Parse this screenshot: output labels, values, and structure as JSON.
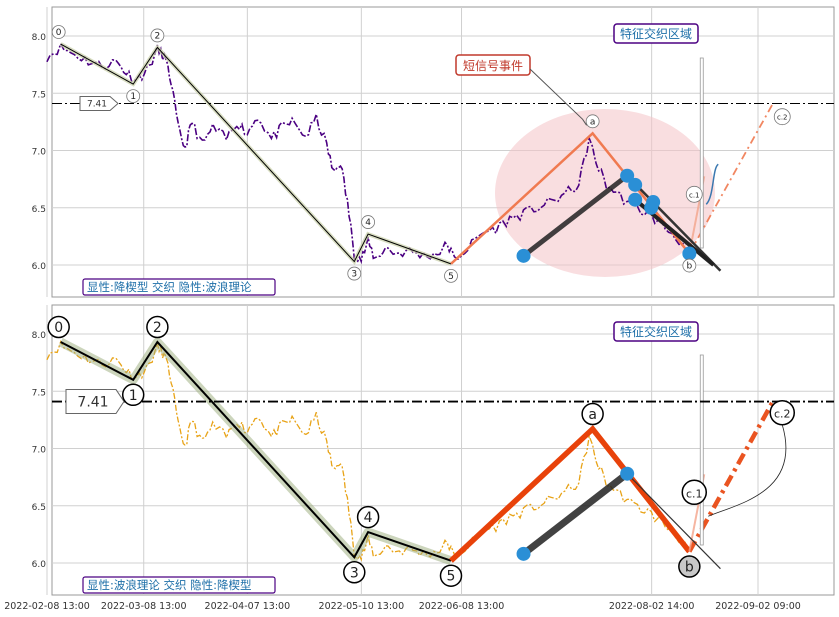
{
  "chart_data": [
    {
      "type": "line",
      "ylim": [
        5.75,
        8.25
      ],
      "yticks": [
        6.0,
        6.5,
        7.0,
        7.5,
        8.0
      ],
      "hline": {
        "value": 7.41,
        "label": "7.41"
      },
      "caption": "显性:降楔型 交织 隐性:波浪理论",
      "annotation_region": "特征交织区域",
      "annotation_event": "短信号事件",
      "price_color": "#4b0082",
      "wave_color": "#000000",
      "wave_points": [
        {
          "x": "2022-02-12",
          "y": 7.93,
          "label": "0"
        },
        {
          "x": "2022-03-05",
          "y": 7.58,
          "label": "1"
        },
        {
          "x": "2022-03-12",
          "y": 7.9,
          "label": "2"
        },
        {
          "x": "2022-05-08",
          "y": 6.03,
          "label": "3"
        },
        {
          "x": "2022-05-12",
          "y": 6.27,
          "label": "4"
        },
        {
          "x": "2022-06-05",
          "y": 6.01,
          "label": "5"
        },
        {
          "x": "2022-07-16",
          "y": 7.15,
          "label": "a"
        },
        {
          "x": "2022-08-13",
          "y": 6.1,
          "label": "b"
        },
        {
          "x": "2022-08-15",
          "y": 6.6,
          "label": "c.1"
        },
        {
          "x": "2022-09-06",
          "y": 7.4,
          "label": "c.2"
        }
      ],
      "grid": true
    },
    {
      "type": "line",
      "ylim": [
        5.75,
        8.25
      ],
      "yticks": [
        6.0,
        6.5,
        7.0,
        7.5,
        8.0
      ],
      "hline": {
        "value": 7.41,
        "label": "7.41"
      },
      "caption": "显性:波浪理论 交织 隐性:降楔型",
      "annotation_region": "特征交织区域",
      "price_color": "#e8a317",
      "wave_color": "#000000",
      "wave_points": [
        {
          "x": "2022-02-12",
          "y": 7.93,
          "label": "0"
        },
        {
          "x": "2022-03-05",
          "y": 7.6,
          "label": "1"
        },
        {
          "x": "2022-03-12",
          "y": 7.93,
          "label": "2"
        },
        {
          "x": "2022-05-08",
          "y": 6.05,
          "label": "3"
        },
        {
          "x": "2022-05-12",
          "y": 6.27,
          "label": "4"
        },
        {
          "x": "2022-06-05",
          "y": 6.02,
          "label": "5"
        },
        {
          "x": "2022-07-16",
          "y": 7.17,
          "label": "a"
        },
        {
          "x": "2022-08-13",
          "y": 6.1,
          "label": "b"
        },
        {
          "x": "2022-08-15",
          "y": 6.6,
          "label": "c.1"
        },
        {
          "x": "2022-09-06",
          "y": 7.4,
          "label": "c.2"
        }
      ],
      "grid": true
    }
  ],
  "x_axis": {
    "ticks": [
      "2022-02-08 13:00",
      "2022-03-08 13:00",
      "2022-04-07 13:00",
      "2022-05-10 13:00",
      "2022-06-08 13:00",
      "2022-08-02 14:00",
      "2022-09-02 09:00"
    ]
  }
}
